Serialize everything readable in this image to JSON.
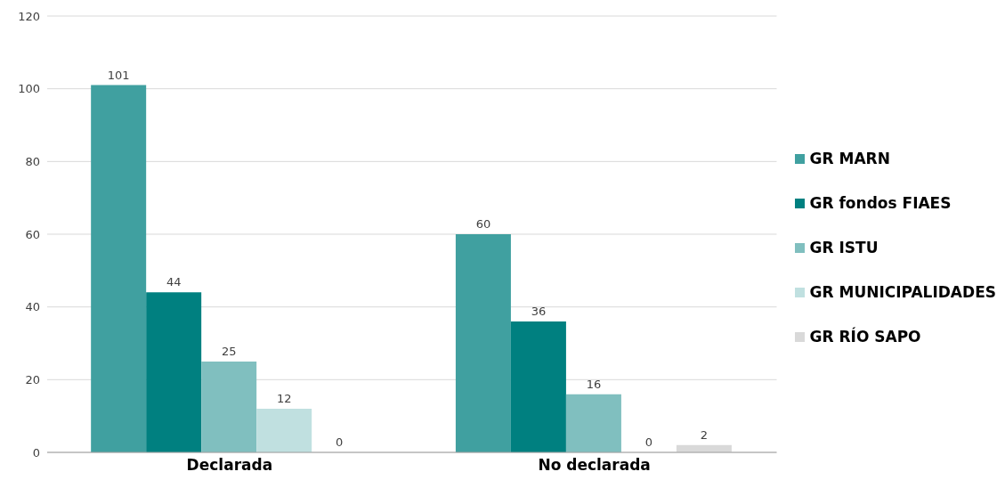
{
  "chart_data": {
    "type": "bar",
    "categories": [
      "Declarada",
      "No declarada"
    ],
    "series": [
      {
        "name": "GR MARN",
        "color": "#40a0a0",
        "values": [
          101,
          60
        ]
      },
      {
        "name": "GR fondos FIAES",
        "color": "#008080",
        "values": [
          44,
          36
        ]
      },
      {
        "name": "GR ISTU",
        "color": "#80bfbf",
        "values": [
          25,
          16
        ]
      },
      {
        "name": "GR MUNICIPALIDADES",
        "color": "#c0e0e0",
        "values": [
          12,
          0
        ]
      },
      {
        "name": "GR RÍO SAPO",
        "color": "#d9d9d9",
        "values": [
          0,
          2
        ]
      }
    ],
    "ylim": [
      0,
      120
    ],
    "yticks": [
      0,
      20,
      40,
      60,
      80,
      100,
      120
    ],
    "grid": "y",
    "legend": "right",
    "data_labels": true
  }
}
